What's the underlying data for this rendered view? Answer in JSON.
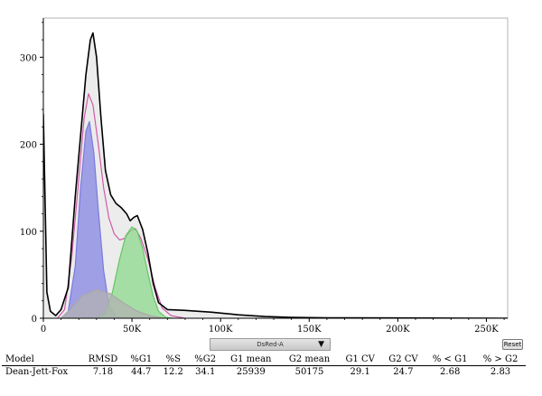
{
  "chart_data": {
    "type": "area",
    "title": "",
    "xlabel": "",
    "ylabel": "",
    "xlim": [
      0,
      262000
    ],
    "ylim": [
      0,
      345
    ],
    "x_ticks": [
      0,
      50000,
      100000,
      150000,
      200000,
      250000
    ],
    "x_tick_labels": [
      "0",
      "50K",
      "100K",
      "150K",
      "200K",
      "250K"
    ],
    "y_ticks": [
      0,
      100,
      200,
      300
    ],
    "y_tick_labels": [
      "0",
      "100",
      "200",
      "300"
    ],
    "grid": false,
    "series": [
      {
        "color": "#000000",
        "points": [
          [
            0,
            235
          ],
          [
            2000,
            30
          ],
          [
            4000,
            8
          ],
          [
            7000,
            3
          ],
          [
            10000,
            10
          ],
          [
            14000,
            35
          ],
          [
            18000,
            140
          ],
          [
            21000,
            210
          ],
          [
            24000,
            280
          ],
          [
            26500,
            320
          ],
          [
            28000,
            328
          ],
          [
            30000,
            300
          ],
          [
            32500,
            230
          ],
          [
            35000,
            170
          ],
          [
            38000,
            142
          ],
          [
            41000,
            132
          ],
          [
            44000,
            127
          ],
          [
            47000,
            120
          ],
          [
            49000,
            112
          ],
          [
            51000,
            116
          ],
          [
            53000,
            118
          ],
          [
            56000,
            102
          ],
          [
            59000,
            75
          ],
          [
            62000,
            40
          ],
          [
            65000,
            18
          ],
          [
            70000,
            10
          ],
          [
            80000,
            9
          ],
          [
            95000,
            7
          ],
          [
            110000,
            4
          ],
          [
            125000,
            2
          ],
          [
            140000,
            1
          ],
          [
            160000,
            0.5
          ],
          [
            200000,
            0.3
          ],
          [
            262000,
            0
          ]
        ]
      },
      {
        "color": "#d05aa8",
        "points": [
          [
            8000,
            0
          ],
          [
            12000,
            10
          ],
          [
            16000,
            70
          ],
          [
            20000,
            160
          ],
          [
            23000,
            230
          ],
          [
            25500,
            258
          ],
          [
            28000,
            245
          ],
          [
            31000,
            200
          ],
          [
            34000,
            150
          ],
          [
            37000,
            115
          ],
          [
            40000,
            97
          ],
          [
            43000,
            90
          ],
          [
            46000,
            92
          ],
          [
            49000,
            100
          ],
          [
            52000,
            103
          ],
          [
            55000,
            92
          ],
          [
            59000,
            68
          ],
          [
            63000,
            36
          ],
          [
            67000,
            12
          ],
          [
            72000,
            3
          ],
          [
            80000,
            0
          ]
        ]
      },
      {
        "color": "#7a7adf",
        "fill": "#8585e4",
        "points": [
          [
            10000,
            0
          ],
          [
            14000,
            8
          ],
          [
            18000,
            60
          ],
          [
            21000,
            150
          ],
          [
            24000,
            215
          ],
          [
            26000,
            226
          ],
          [
            28500,
            190
          ],
          [
            31000,
            125
          ],
          [
            34000,
            55
          ],
          [
            37000,
            15
          ],
          [
            41000,
            2
          ],
          [
            45000,
            0
          ]
        ]
      },
      {
        "color": "#66c466",
        "fill": "#8ed98e",
        "points": [
          [
            30000,
            0
          ],
          [
            35000,
            6
          ],
          [
            39000,
            30
          ],
          [
            43000,
            68
          ],
          [
            46500,
            95
          ],
          [
            50000,
            105
          ],
          [
            53000,
            100
          ],
          [
            56000,
            80
          ],
          [
            59000,
            52
          ],
          [
            62000,
            25
          ],
          [
            65000,
            8
          ],
          [
            69000,
            1
          ],
          [
            73000,
            0
          ]
        ]
      },
      {
        "color": "#a8a8a8",
        "fill": "#b2b2b2",
        "points": [
          [
            10000,
            0
          ],
          [
            15000,
            10
          ],
          [
            22000,
            26
          ],
          [
            30000,
            33
          ],
          [
            38000,
            28
          ],
          [
            45000,
            18
          ],
          [
            52000,
            9
          ],
          [
            60000,
            3
          ],
          [
            68000,
            0
          ]
        ]
      }
    ]
  },
  "axis_selector": {
    "value": "DsRed-A",
    "chevron": "▼"
  },
  "reset_label": "Reset",
  "stats": {
    "headers": [
      "Model",
      "RMSD",
      "%G1",
      "%S",
      "%G2",
      "G1 mean",
      "G2 mean",
      "G1 CV",
      "G2 CV",
      "% < G1",
      "% > G2"
    ],
    "row": [
      "Dean-Jett-Fox",
      "7.18",
      "44.7",
      "12.2",
      "34.1",
      "25939",
      "50175",
      "29.1",
      "24.7",
      "2.68",
      "2.83"
    ]
  }
}
